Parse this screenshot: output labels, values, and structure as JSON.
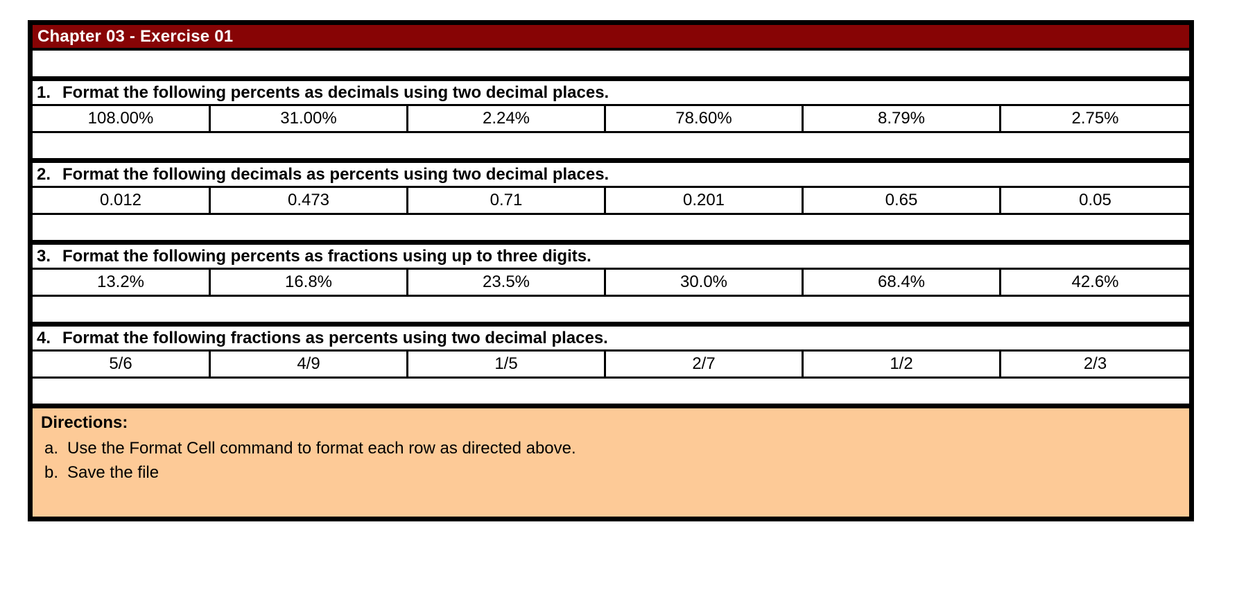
{
  "worksheet": {
    "title": "Chapter 03 - Exercise 01",
    "colors": {
      "title_bg": "#870405",
      "title_text": "#ffffff",
      "directions_bg": "#FDCA97",
      "border": "#000000"
    },
    "sections": [
      {
        "number": "1.",
        "heading": "Format the following percents as decimals using two decimal places.",
        "values": [
          "108.00%",
          "31.00%",
          "2.24%",
          "78.60%",
          "8.79%",
          "2.75%"
        ]
      },
      {
        "number": "2.",
        "heading": "Format the following decimals as percents using two decimal places.",
        "values": [
          "0.012",
          "0.473",
          "0.71",
          "0.201",
          "0.65",
          "0.05"
        ]
      },
      {
        "number": "3.",
        "heading": "Format the following percents as fractions using up to three digits.",
        "values": [
          "13.2%",
          "16.8%",
          "23.5%",
          "30.0%",
          "68.4%",
          "42.6%"
        ]
      },
      {
        "number": "4.",
        "heading": "Format the following fractions as percents using two decimal places.",
        "values": [
          "5/6",
          "4/9",
          "1/5",
          "2/7",
          "1/2",
          "2/3"
        ]
      }
    ],
    "directions": {
      "label": "Directions:",
      "items": [
        {
          "letter": "a.",
          "text": "Use the Format Cell command to format each row as directed above."
        },
        {
          "letter": "b.",
          "text": "Save the file"
        }
      ]
    }
  }
}
